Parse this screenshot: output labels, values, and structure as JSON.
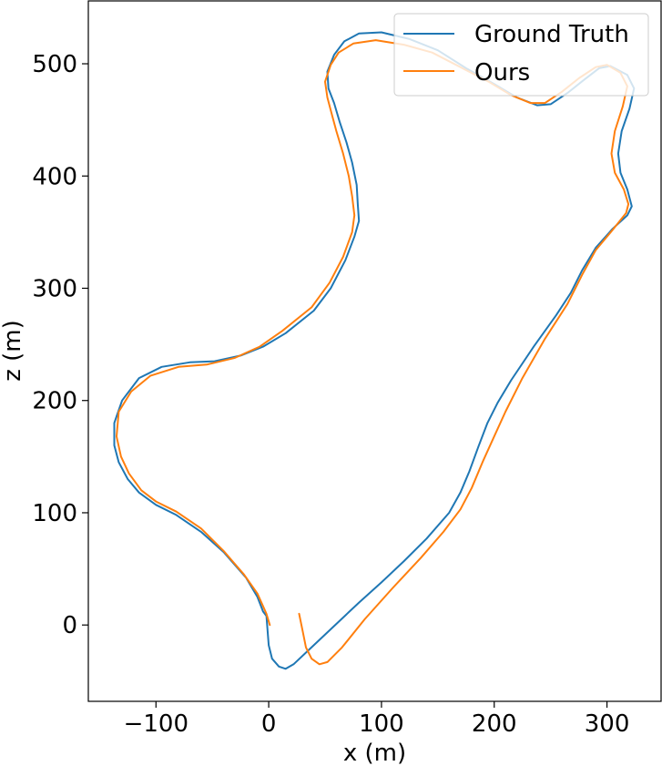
{
  "chart_data": {
    "type": "line",
    "title": "",
    "xlabel": "x (m)",
    "ylabel": "z (m)",
    "xlim": [
      -160,
      348
    ],
    "ylim": [
      -68,
      556
    ],
    "xticks": [
      -100,
      0,
      100,
      200,
      300
    ],
    "yticks": [
      0,
      100,
      200,
      300,
      400,
      500
    ],
    "xtick_labels": [
      "−100",
      "0",
      "100",
      "200",
      "300"
    ],
    "ytick_labels": [
      "0",
      "100",
      "200",
      "300",
      "400",
      "500"
    ],
    "grid": false,
    "legend_position": "top-right",
    "series": [
      {
        "name": "Ground Truth",
        "color": "#1f77b4",
        "points": [
          [
            -2,
            8
          ],
          [
            0,
            -18
          ],
          [
            3,
            -30
          ],
          [
            9,
            -37
          ],
          [
            15,
            -39
          ],
          [
            22,
            -35
          ],
          [
            40,
            -18
          ],
          [
            60,
            1
          ],
          [
            80,
            20
          ],
          [
            100,
            38
          ],
          [
            120,
            57
          ],
          [
            140,
            77
          ],
          [
            160,
            100
          ],
          [
            170,
            118
          ],
          [
            178,
            137
          ],
          [
            186,
            159
          ],
          [
            194,
            180
          ],
          [
            203,
            198
          ],
          [
            215,
            218
          ],
          [
            235,
            248
          ],
          [
            255,
            276
          ],
          [
            268,
            296
          ],
          [
            278,
            316
          ],
          [
            290,
            336
          ],
          [
            305,
            353
          ],
          [
            318,
            365
          ],
          [
            322,
            373
          ],
          [
            318,
            388
          ],
          [
            312,
            403
          ],
          [
            310,
            420
          ],
          [
            313,
            440
          ],
          [
            320,
            460
          ],
          [
            324,
            478
          ],
          [
            318,
            490
          ],
          [
            303,
            498
          ],
          [
            293,
            496
          ],
          [
            280,
            486
          ],
          [
            265,
            474
          ],
          [
            250,
            464
          ],
          [
            238,
            463
          ],
          [
            220,
            470
          ],
          [
            200,
            482
          ],
          [
            175,
            496
          ],
          [
            150,
            512
          ],
          [
            125,
            522
          ],
          [
            100,
            528
          ],
          [
            80,
            527
          ],
          [
            67,
            520
          ],
          [
            58,
            508
          ],
          [
            52,
            493
          ],
          [
            53,
            478
          ],
          [
            58,
            465
          ],
          [
            63,
            448
          ],
          [
            69,
            430
          ],
          [
            74,
            412
          ],
          [
            78,
            392
          ],
          [
            79,
            375
          ],
          [
            80,
            360
          ],
          [
            76,
            346
          ],
          [
            68,
            325
          ],
          [
            55,
            300
          ],
          [
            40,
            280
          ],
          [
            15,
            260
          ],
          [
            -5,
            248
          ],
          [
            -25,
            240
          ],
          [
            -48,
            235
          ],
          [
            -70,
            234
          ],
          [
            -95,
            230
          ],
          [
            -115,
            220
          ],
          [
            -130,
            200
          ],
          [
            -137,
            180
          ],
          [
            -137,
            160
          ],
          [
            -133,
            145
          ],
          [
            -125,
            130
          ],
          [
            -115,
            118
          ],
          [
            -100,
            107
          ],
          [
            -82,
            98
          ],
          [
            -60,
            83
          ],
          [
            -40,
            65
          ],
          [
            -20,
            42
          ],
          [
            -10,
            25
          ],
          [
            -5,
            12
          ],
          [
            -2,
            8
          ]
        ]
      },
      {
        "name": "Ours",
        "color": "#ff7f0e",
        "points": [
          [
            27,
            10
          ],
          [
            30,
            -5
          ],
          [
            33,
            -20
          ],
          [
            38,
            -30
          ],
          [
            45,
            -35
          ],
          [
            52,
            -33
          ],
          [
            65,
            -20
          ],
          [
            85,
            5
          ],
          [
            110,
            33
          ],
          [
            135,
            60
          ],
          [
            155,
            83
          ],
          [
            170,
            103
          ],
          [
            180,
            122
          ],
          [
            190,
            146
          ],
          [
            200,
            168
          ],
          [
            210,
            190
          ],
          [
            225,
            220
          ],
          [
            245,
            255
          ],
          [
            265,
            286
          ],
          [
            278,
            312
          ],
          [
            290,
            334
          ],
          [
            305,
            352
          ],
          [
            317,
            367
          ],
          [
            319,
            375
          ],
          [
            315,
            388
          ],
          [
            307,
            403
          ],
          [
            304,
            420
          ],
          [
            307,
            440
          ],
          [
            314,
            462
          ],
          [
            318,
            480
          ],
          [
            312,
            492
          ],
          [
            300,
            499
          ],
          [
            290,
            497
          ],
          [
            275,
            487
          ],
          [
            260,
            475
          ],
          [
            245,
            465
          ],
          [
            232,
            465
          ],
          [
            215,
            472
          ],
          [
            195,
            484
          ],
          [
            170,
            497
          ],
          [
            145,
            510
          ],
          [
            120,
            517
          ],
          [
            95,
            521
          ],
          [
            75,
            518
          ],
          [
            62,
            510
          ],
          [
            55,
            499
          ],
          [
            50,
            484
          ],
          [
            52,
            470
          ],
          [
            56,
            455
          ],
          [
            60,
            440
          ],
          [
            66,
            420
          ],
          [
            71,
            400
          ],
          [
            74,
            382
          ],
          [
            76,
            365
          ],
          [
            74,
            350
          ],
          [
            66,
            328
          ],
          [
            54,
            305
          ],
          [
            38,
            283
          ],
          [
            12,
            262
          ],
          [
            -8,
            248
          ],
          [
            -30,
            238
          ],
          [
            -55,
            232
          ],
          [
            -80,
            230
          ],
          [
            -105,
            222
          ],
          [
            -122,
            208
          ],
          [
            -133,
            190
          ],
          [
            -135,
            168
          ],
          [
            -131,
            150
          ],
          [
            -124,
            135
          ],
          [
            -113,
            120
          ],
          [
            -100,
            110
          ],
          [
            -82,
            101
          ],
          [
            -60,
            86
          ],
          [
            -40,
            66
          ],
          [
            -22,
            45
          ],
          [
            -10,
            28
          ],
          [
            -2,
            10
          ],
          [
            1,
            0
          ]
        ]
      }
    ]
  }
}
